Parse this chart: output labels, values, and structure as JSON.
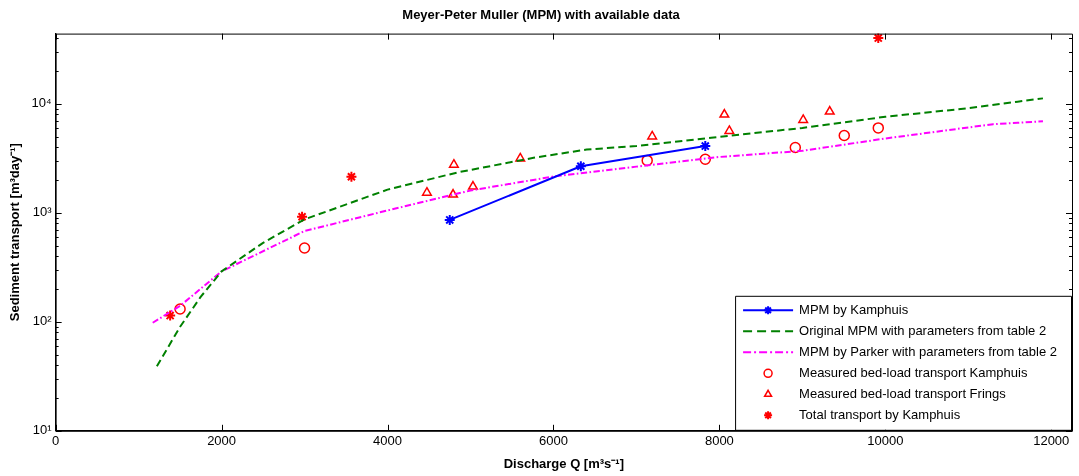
{
  "chart_data": {
    "type": "line",
    "title": "Meyer-Peter Muller (MPM) with available data",
    "xlabel": "Discharge Q [m³s⁻¹]",
    "ylabel": "Sediment transport [m³day⁻¹]",
    "log": "y",
    "grid": false,
    "legend": "bottom right",
    "xlim": [
      0,
      12250
    ],
    "xticks": [
      0,
      2000,
      4000,
      6000,
      8000,
      10000,
      12000
    ],
    "ylim": [
      10,
      44000
    ],
    "yticks": [
      {
        "value": 10,
        "label": "10¹"
      },
      {
        "value": 20,
        "label": null
      },
      {
        "value": 30,
        "label": null
      },
      {
        "value": 40,
        "label": null
      },
      {
        "value": 50,
        "label": null
      },
      {
        "value": 60,
        "label": null
      },
      {
        "value": 70,
        "label": null
      },
      {
        "value": 80,
        "label": null
      },
      {
        "value": 90,
        "label": null
      },
      {
        "value": 100,
        "label": "10²"
      },
      {
        "value": 200,
        "label": null
      },
      {
        "value": 300,
        "label": null
      },
      {
        "value": 400,
        "label": null
      },
      {
        "value": 500,
        "label": null
      },
      {
        "value": 600,
        "label": null
      },
      {
        "value": 700,
        "label": null
      },
      {
        "value": 800,
        "label": null
      },
      {
        "value": 900,
        "label": null
      },
      {
        "value": 1000,
        "label": "10³"
      },
      {
        "value": 2000,
        "label": null
      },
      {
        "value": 3000,
        "label": null
      },
      {
        "value": 4000,
        "label": null
      },
      {
        "value": 5000,
        "label": null
      },
      {
        "value": 6000,
        "label": null
      },
      {
        "value": 7000,
        "label": null
      },
      {
        "value": 8000,
        "label": null
      },
      {
        "value": 9000,
        "label": null
      },
      {
        "value": 10000,
        "label": "10⁴"
      },
      {
        "value": 20000,
        "label": null
      },
      {
        "value": 30000,
        "label": null
      },
      {
        "value": 40000,
        "label": null
      }
    ],
    "series": [
      {
        "name": "MPM by Kamphuis",
        "color": "#0000ff",
        "marker": "cross",
        "line_style": "solid",
        "x": [
          4750,
          6330,
          7830
        ],
        "values": [
          860,
          2670,
          4090
        ]
      },
      {
        "name": "Original MPM with parameters from table 2",
        "color": "#008000",
        "marker": "none",
        "line_style": "dashed",
        "x": [
          1220,
          1500,
          1750,
          2000,
          2500,
          3000,
          4000,
          4850,
          5760,
          6400,
          7000,
          7900,
          9000,
          10000,
          11000,
          11900
        ],
        "values": [
          39,
          90,
          170,
          290,
          530,
          870,
          1630,
          2350,
          3190,
          3800,
          4100,
          4880,
          6000,
          7600,
          9100,
          11200
        ]
      },
      {
        "name": "MPM by Parker with parameters from table 2",
        "color": "#ff00ff",
        "marker": "none",
        "line_style": "dashdot",
        "x": [
          1170,
          1500,
          2000,
          3000,
          4000,
          5000,
          6000,
          7000,
          8000,
          9000,
          10000,
          11300,
          11900
        ],
        "values": [
          98,
          140,
          290,
          680,
          1050,
          1600,
          2150,
          2650,
          3250,
          3700,
          4800,
          6500,
          6900
        ]
      },
      {
        "name": "Measured bed-load transport Kamphuis",
        "type": "scatter",
        "color": "#ff0000",
        "marker": "circle",
        "x": [
          1500,
          3000,
          7130,
          7830,
          8915,
          9505,
          9915
        ],
        "values": [
          131,
          475,
          3020,
          3100,
          3970,
          5120,
          6000
        ]
      },
      {
        "name": "Measured bed-load transport Frings",
        "type": "scatter",
        "color": "#ff0000",
        "marker": "triangle",
        "x": [
          4475,
          4800,
          4790,
          5030,
          5600,
          7190,
          8060,
          8120,
          9010,
          9330
        ],
        "values": [
          1530,
          2760,
          1470,
          1740,
          3150,
          5020,
          7950,
          5630,
          7100,
          8470
        ]
      },
      {
        "name": "Total transport by Kamphuis",
        "type": "scatter",
        "color": "#ff0000",
        "marker": "cross",
        "x": [
          1380,
          2970,
          3565,
          9915
        ],
        "values": [
          114,
          920,
          2140,
          40000
        ]
      }
    ]
  }
}
